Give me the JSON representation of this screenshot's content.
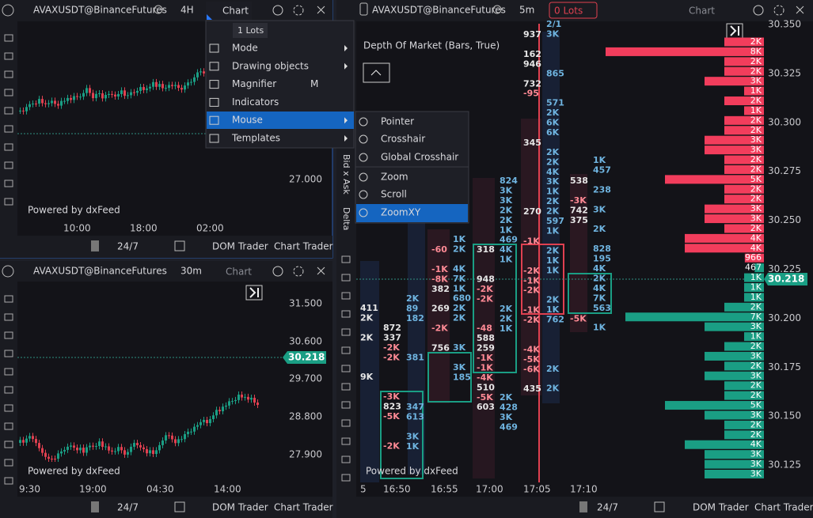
{
  "top_left": {
    "symbol": "AVAXUSDT@BinanceFutures",
    "timeframe": "4H",
    "menu_button": "Chart",
    "price_labels": [
      "27.000"
    ],
    "time_labels": [
      "10:00",
      "18:00",
      "02:00"
    ],
    "powered": "Powered by dxFeed",
    "session": "24/7",
    "dom_trader": "DOM Trader",
    "chart_trader": "Chart Trader"
  },
  "context_menu": {
    "lots": "1 Lots",
    "items": [
      {
        "label": "Mode"
      },
      {
        "label": "Drawing objects"
      },
      {
        "label": "Magnifier",
        "shortcut": "M"
      },
      {
        "label": "Indicators"
      },
      {
        "label": "Mouse"
      },
      {
        "label": "Templates"
      }
    ]
  },
  "mouse_submenu": {
    "items": [
      "Pointer",
      "Crosshair",
      "Global Crosshair",
      "Zoom",
      "Scroll",
      "ZoomXY"
    ]
  },
  "bottom_left": {
    "symbol": "AVAXUSDT@BinanceFutures",
    "timeframe": "30m",
    "chart": "Chart",
    "price_labels": [
      "31.500",
      "30.600",
      "29.700",
      "28.800",
      "27.900"
    ],
    "last_price": "30.218",
    "time_labels": [
      "9:30",
      "19:00",
      "04:30",
      "14:00"
    ],
    "powered": "Powered by dxFeed",
    "session": "24/7",
    "dom_trader": "DOM Trader",
    "chart_trader": "Chart Trader"
  },
  "right": {
    "symbol": "AVAXUSDT@BinanceFutures",
    "timeframe": "5m",
    "lots": "0 Lots",
    "chart": "Chart",
    "indicator": "Depth Of Market (Bars, True)",
    "side_labels": [
      "Bid x Ask",
      "Delta"
    ],
    "price_labels": [
      "30.350",
      "30.325",
      "30.300",
      "30.275",
      "30.250",
      "30.225",
      "30.200",
      "30.175",
      "30.150",
      "30.125"
    ],
    "last_price": "30.218",
    "time_labels": [
      "5",
      "16:50",
      "16:55",
      "17:00",
      "17:05",
      "17:10"
    ],
    "powered": "Powered by dxFeed",
    "session": "24/7",
    "dom_trader": "DOM Trader",
    "chart_trader": "Chart Trader",
    "dom": {
      "asks": {
        "values": [
          2000,
          8000,
          2000,
          2000,
          3000,
          1000,
          2000,
          1000,
          2000,
          2000,
          3000,
          3000,
          2000,
          2000,
          5000,
          2000,
          2000,
          3000,
          3000,
          2000,
          4000,
          4000,
          966
        ],
        "value_labels": [
          "2K",
          "8K",
          "2K",
          "2K",
          "3K",
          "1K",
          "2K",
          "1K",
          "2K",
          "2K",
          "3K",
          "3K",
          "2K",
          "2K",
          "5K",
          "2K",
          "2K",
          "3K",
          "3K",
          "2K",
          "4K",
          "4K",
          "966"
        ]
      },
      "bids": {
        "values": [
          467,
          1000,
          1000,
          1000,
          2000,
          7000,
          3000,
          1000,
          2000,
          3000,
          2000,
          3000,
          2000,
          2000,
          5000,
          3000,
          2000,
          2000,
          4000,
          3000,
          3000,
          3000
        ],
        "value_labels": [
          "467",
          "1K",
          "1K",
          "1K",
          "2K",
          "7K",
          "3K",
          "1K",
          "2K",
          "3K",
          "2K",
          "3K",
          "2K",
          "2K",
          "5K",
          "3K",
          "2K",
          "2K",
          "4K",
          "3K",
          "3K",
          "3K"
        ]
      }
    },
    "footprint": [
      {
        "left": [
          "411",
          "2K",
          null,
          "2K",
          null,
          null,
          null,
          "9K"
        ],
        "right": [
          "2K",
          "89",
          "182",
          null,
          null,
          null,
          "381",
          null,
          null,
          null,
          null,
          "347",
          "613",
          null,
          "3K",
          "1K"
        ]
      },
      {
        "left": [
          "872",
          "337",
          "-2K",
          "-2K",
          null,
          null,
          null,
          "-3K",
          "823",
          "-5K",
          null,
          null,
          "-2K"
        ],
        "right": []
      },
      {
        "left": [
          "-60",
          null,
          "-1K",
          "-8K",
          "382",
          null,
          "269",
          null,
          "-2K",
          null,
          "756"
        ],
        "right": [
          "1K",
          "2K",
          null,
          "4K",
          "7K",
          "1K",
          "680",
          "2K",
          "2K",
          null,
          null,
          "3K",
          null,
          "3K",
          "185"
        ]
      },
      {
        "left": [
          "318",
          null,
          null,
          "948",
          "-2K",
          "-2K",
          null,
          null,
          "-48",
          "588",
          "259",
          "-1K",
          "-1K",
          "-4K",
          "510",
          "-5K",
          "603"
        ],
        "right": [
          "824",
          "3K",
          "3K",
          "2K",
          "2K",
          "1K",
          "469",
          "4K",
          "1K",
          null,
          null,
          null,
          null,
          "2K",
          "2K",
          "1K",
          null,
          null,
          null,
          null,
          null,
          null,
          "2K",
          "428",
          "3K",
          "469"
        ]
      },
      {
        "left": [
          "937",
          null,
          "162",
          "946",
          null,
          "732",
          "-95",
          null,
          null,
          null,
          null,
          "345",
          null,
          null,
          null,
          null,
          null,
          null,
          "270",
          null,
          null,
          "-1K",
          null,
          null,
          "-2K",
          "-1K",
          "-2K",
          null,
          "-1K",
          "-2K",
          null,
          null,
          "-4K",
          "-5K",
          "-6K",
          null,
          "435"
        ],
        "right": [
          "2/1",
          "3K",
          null,
          null,
          null,
          "865",
          null,
          null,
          "571",
          "2K",
          "6K",
          "6K",
          null,
          "2K",
          "2K",
          "4K",
          "3K",
          "1K",
          "2K",
          "2K",
          "597",
          "1K",
          null,
          "2K",
          "1K",
          "1K",
          null,
          null,
          "2K",
          "1K",
          "762",
          null,
          null,
          null,
          null,
          "2K",
          null,
          "2K"
        ]
      },
      {
        "left": [
          "538",
          null,
          "-3K",
          "742",
          "375",
          null,
          null,
          null,
          null,
          null,
          null,
          null,
          null,
          null,
          "-5K"
        ],
        "right": [
          "1K",
          "457",
          null,
          "238",
          null,
          "3K",
          null,
          "2K",
          null,
          "828",
          "195",
          "4K",
          "2K",
          "4K",
          "7K",
          "563",
          null,
          "1K"
        ]
      }
    ]
  }
}
